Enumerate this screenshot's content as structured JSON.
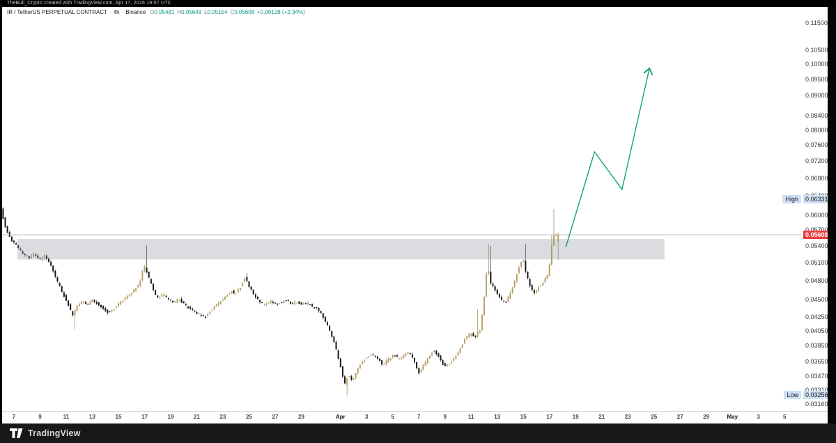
{
  "top_bar": {
    "text": "TheBull_Crypto created with TradingView.com, Apr 17, 2026 19:07 UTC"
  },
  "header": {
    "symbol": "IR / TetherUS PERPETUAL CONTRACT",
    "sep": "·",
    "interval": "4h",
    "exchange": "Binance",
    "ohlc": {
      "o_label": "O",
      "o": "0.05481",
      "h_label": "H",
      "h": "0.05649",
      "l_label": "L",
      "l": "0.05154",
      "c_label": "C",
      "c": "0.05608",
      "change": "+0.00128 (+2.34%)"
    }
  },
  "footer": {
    "brand": "TradingView"
  },
  "colors": {
    "up": "#b7a262",
    "up_wick": "#a3905c",
    "down": "#161616",
    "down_wick": "#444444",
    "arrow": "#149e80",
    "zone_fill": "rgba(137,140,148,0.30)",
    "price_line": "#b6b9c0",
    "current_label_bg": "#ef3b3b",
    "hl_label_bg": "#cfe0f2"
  },
  "chart_data": {
    "type": "candlestick",
    "interval": "4h",
    "scale": "log",
    "y_axis": {
      "ticks": [
        "0.11500",
        "0.10500",
        "0.10000",
        "0.09500",
        "0.09000",
        "0.08400",
        "0.08000",
        "0.07600",
        "0.07200",
        "0.06800",
        "0.06400",
        "0.06000",
        "0.05700",
        "0.05400",
        "0.05100",
        "0.04800",
        "0.04500",
        "0.04250",
        "0.04050",
        "0.03850",
        "0.03650",
        "0.03470",
        "0.03310",
        "0.03160"
      ]
    },
    "x_axis": {
      "ticks": [
        {
          "label": "7",
          "d": 0
        },
        {
          "label": "9",
          "d": 2
        },
        {
          "label": "11",
          "d": 4
        },
        {
          "label": "13",
          "d": 6
        },
        {
          "label": "15",
          "d": 8
        },
        {
          "label": "17",
          "d": 10
        },
        {
          "label": "19",
          "d": 12
        },
        {
          "label": "21",
          "d": 14
        },
        {
          "label": "23",
          "d": 16
        },
        {
          "label": "25",
          "d": 18
        },
        {
          "label": "27",
          "d": 20
        },
        {
          "label": "29",
          "d": 22
        },
        {
          "label": "Apr",
          "d": 25,
          "major": true
        },
        {
          "label": "3",
          "d": 27
        },
        {
          "label": "5",
          "d": 29
        },
        {
          "label": "7",
          "d": 31
        },
        {
          "label": "9",
          "d": 33
        },
        {
          "label": "11",
          "d": 35
        },
        {
          "label": "13",
          "d": 37
        },
        {
          "label": "15",
          "d": 39
        },
        {
          "label": "17",
          "d": 41
        },
        {
          "label": "19",
          "d": 43
        },
        {
          "label": "21",
          "d": 45
        },
        {
          "label": "23",
          "d": 47
        },
        {
          "label": "25",
          "d": 49
        },
        {
          "label": "27",
          "d": 51
        },
        {
          "label": "29",
          "d": 53
        },
        {
          "label": "May",
          "d": 55,
          "major": true
        },
        {
          "label": "3",
          "d": 57
        },
        {
          "label": "5",
          "d": 59
        }
      ]
    },
    "range_high": {
      "label": "High",
      "value": "0.06331",
      "price": 0.06331
    },
    "range_low": {
      "label": "Low",
      "value": "0.03256",
      "price": 0.03256
    },
    "last_price": {
      "value": "0.05608",
      "price": 0.05608
    },
    "zone": {
      "day_start": 0.27,
      "day_end": 49.8,
      "price_top": 0.0553,
      "price_bottom": 0.0516
    },
    "arrow": {
      "points": [
        [
          42.25,
          0.0538
        ],
        [
          44.45,
          0.0743
        ],
        [
          46.55,
          0.0654
        ],
        [
          48.65,
          0.0986
        ]
      ]
    },
    "day_range": [
      -1.0,
      41.67
    ],
    "price_path": [
      [
        -1.0,
        0.0633
      ],
      [
        -0.85,
        0.0615
      ],
      [
        -0.6,
        0.0585
      ],
      [
        -0.35,
        0.0565
      ],
      [
        -0.1,
        0.0552
      ],
      [
        0.3,
        0.0543
      ],
      [
        0.8,
        0.0528
      ],
      [
        1.3,
        0.0518
      ],
      [
        1.7,
        0.0526
      ],
      [
        2.1,
        0.0515
      ],
      [
        2.5,
        0.0522
      ],
      [
        2.8,
        0.0514
      ],
      [
        3.1,
        0.05
      ],
      [
        3.5,
        0.0478
      ],
      [
        3.9,
        0.046
      ],
      [
        4.3,
        0.0444
      ],
      [
        4.65,
        0.0426
      ],
      [
        5.0,
        0.044
      ],
      [
        5.4,
        0.0448
      ],
      [
        5.8,
        0.0443
      ],
      [
        6.2,
        0.045
      ],
      [
        6.6,
        0.0443
      ],
      [
        7.0,
        0.0437
      ],
      [
        7.4,
        0.043
      ],
      [
        7.8,
        0.0436
      ],
      [
        8.2,
        0.0444
      ],
      [
        8.6,
        0.0452
      ],
      [
        9.0,
        0.0458
      ],
      [
        9.4,
        0.0466
      ],
      [
        9.8,
        0.0476
      ],
      [
        10.1,
        0.0506
      ],
      [
        10.3,
        0.0496
      ],
      [
        10.6,
        0.0478
      ],
      [
        10.9,
        0.0461
      ],
      [
        11.2,
        0.0452
      ],
      [
        11.6,
        0.0459
      ],
      [
        12.0,
        0.045
      ],
      [
        12.4,
        0.0446
      ],
      [
        12.8,
        0.0451
      ],
      [
        13.2,
        0.0443
      ],
      [
        13.6,
        0.0437
      ],
      [
        14.0,
        0.0432
      ],
      [
        14.4,
        0.0428
      ],
      [
        14.8,
        0.0424
      ],
      [
        15.2,
        0.0434
      ],
      [
        15.6,
        0.0441
      ],
      [
        16.0,
        0.0448
      ],
      [
        16.4,
        0.0455
      ],
      [
        16.8,
        0.0464
      ],
      [
        17.1,
        0.0458
      ],
      [
        17.5,
        0.047
      ],
      [
        17.85,
        0.0486
      ],
      [
        18.2,
        0.047
      ],
      [
        18.6,
        0.0456
      ],
      [
        19.0,
        0.0446
      ],
      [
        19.4,
        0.0442
      ],
      [
        19.8,
        0.0448
      ],
      [
        20.2,
        0.0443
      ],
      [
        20.6,
        0.0446
      ],
      [
        21.0,
        0.045
      ],
      [
        21.4,
        0.0444
      ],
      [
        21.8,
        0.0447
      ],
      [
        22.2,
        0.0443
      ],
      [
        22.6,
        0.0445
      ],
      [
        23.0,
        0.044
      ],
      [
        23.4,
        0.0436
      ],
      [
        23.8,
        0.0426
      ],
      [
        24.2,
        0.041
      ],
      [
        24.6,
        0.0394
      ],
      [
        24.9,
        0.0376
      ],
      [
        25.2,
        0.0356
      ],
      [
        25.5,
        0.0338
      ],
      [
        25.75,
        0.035
      ],
      [
        26.05,
        0.0341
      ],
      [
        26.4,
        0.0354
      ],
      [
        26.8,
        0.0364
      ],
      [
        27.2,
        0.0371
      ],
      [
        27.6,
        0.0373
      ],
      [
        28.0,
        0.0369
      ],
      [
        28.4,
        0.0361
      ],
      [
        28.8,
        0.0367
      ],
      [
        29.2,
        0.0373
      ],
      [
        29.6,
        0.0369
      ],
      [
        30.0,
        0.0373
      ],
      [
        30.4,
        0.0377
      ],
      [
        30.8,
        0.0365
      ],
      [
        31.15,
        0.0351
      ],
      [
        31.5,
        0.036
      ],
      [
        31.9,
        0.037
      ],
      [
        32.3,
        0.0379
      ],
      [
        32.7,
        0.0371
      ],
      [
        33.1,
        0.0359
      ],
      [
        33.5,
        0.0363
      ],
      [
        33.9,
        0.0369
      ],
      [
        34.3,
        0.0381
      ],
      [
        34.7,
        0.0395
      ],
      [
        35.1,
        0.0401
      ],
      [
        35.5,
        0.0397
      ],
      [
        35.9,
        0.0408
      ],
      [
        36.15,
        0.0452
      ],
      [
        36.4,
        0.0508
      ],
      [
        36.65,
        0.0477
      ],
      [
        37.0,
        0.0466
      ],
      [
        37.4,
        0.0451
      ],
      [
        37.75,
        0.0444
      ],
      [
        38.1,
        0.0457
      ],
      [
        38.5,
        0.048
      ],
      [
        38.85,
        0.0504
      ],
      [
        39.1,
        0.0519
      ],
      [
        39.4,
        0.049
      ],
      [
        39.7,
        0.047
      ],
      [
        40.0,
        0.046
      ],
      [
        40.35,
        0.0471
      ],
      [
        40.7,
        0.0477
      ],
      [
        41.0,
        0.049
      ],
      [
        41.2,
        0.051
      ],
      [
        41.35,
        0.0545
      ],
      [
        41.5,
        0.056
      ],
      [
        41.67,
        0.0561
      ]
    ],
    "wick_overrides": [
      {
        "d": 4.65,
        "l": 0.0407
      },
      {
        "d": 10.1,
        "h": 0.0541
      },
      {
        "d": 17.85,
        "h": 0.0493
      },
      {
        "d": 25.5,
        "l": 0.03256
      },
      {
        "d": 35.55,
        "h": 0.0436
      },
      {
        "d": 36.4,
        "h": 0.0544
      },
      {
        "d": 36.55,
        "h": 0.054
      },
      {
        "d": 39.1,
        "h": 0.0544
      },
      {
        "d": 41.2,
        "h": 0.056
      },
      {
        "d": 41.35,
        "h": 0.0612
      }
    ],
    "last_candle": {
      "o": 0.05481,
      "h": 0.05649,
      "l": 0.05154,
      "c": 0.05608
    }
  }
}
